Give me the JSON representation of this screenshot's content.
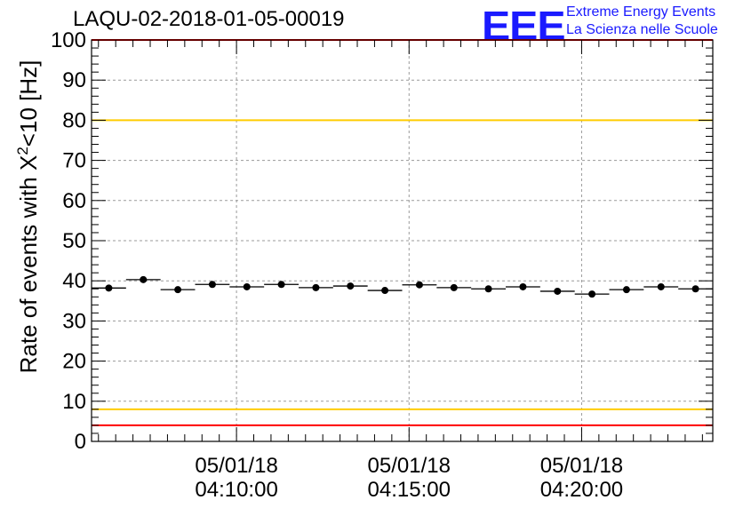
{
  "chart_data": {
    "type": "scatter",
    "title": "LAQU-02-2018-01-05-00019",
    "ylabel_prefix": "Rate of events with X",
    "ylabel_sup": "2",
    "ylabel_suffix": "<10 [Hz]",
    "xlabel": "",
    "ylim": [
      0,
      100
    ],
    "yticks": [
      0,
      10,
      20,
      30,
      40,
      50,
      60,
      70,
      80,
      90,
      100
    ],
    "xlim_minutes": [
      5.8,
      23.8
    ],
    "xticks": [
      {
        "date": "05/01/18",
        "time": "04:10:00",
        "minute": 10
      },
      {
        "date": "05/01/18",
        "time": "04:15:00",
        "minute": 15
      },
      {
        "date": "05/01/18",
        "time": "04:20:00",
        "minute": 20
      }
    ],
    "bin_width_minutes": 1,
    "points": [
      {
        "minute": 6.3,
        "value": 38.2
      },
      {
        "minute": 7.3,
        "value": 40.3
      },
      {
        "minute": 8.3,
        "value": 37.8
      },
      {
        "minute": 9.3,
        "value": 39.1
      },
      {
        "minute": 10.3,
        "value": 38.5
      },
      {
        "minute": 11.3,
        "value": 39.1
      },
      {
        "minute": 12.3,
        "value": 38.3
      },
      {
        "minute": 13.3,
        "value": 38.7
      },
      {
        "minute": 14.3,
        "value": 37.6
      },
      {
        "minute": 15.3,
        "value": 39.0
      },
      {
        "minute": 16.3,
        "value": 38.3
      },
      {
        "minute": 17.3,
        "value": 38.0
      },
      {
        "minute": 18.3,
        "value": 38.5
      },
      {
        "minute": 19.3,
        "value": 37.4
      },
      {
        "minute": 20.3,
        "value": 36.7
      },
      {
        "minute": 21.3,
        "value": 37.8
      },
      {
        "minute": 22.3,
        "value": 38.5
      },
      {
        "minute": 23.3,
        "value": 38.0
      }
    ],
    "reference_lines": [
      {
        "value": 100,
        "color": "#ff0000"
      },
      {
        "value": 80,
        "color": "#ffcc00"
      },
      {
        "value": 8,
        "color": "#ffcc00"
      },
      {
        "value": 4,
        "color": "#ff0000"
      }
    ],
    "grid": true
  },
  "logo": {
    "mark": "EEE",
    "line1": "Extreme Energy Events",
    "line2": "La Scienza nelle Scuole"
  }
}
